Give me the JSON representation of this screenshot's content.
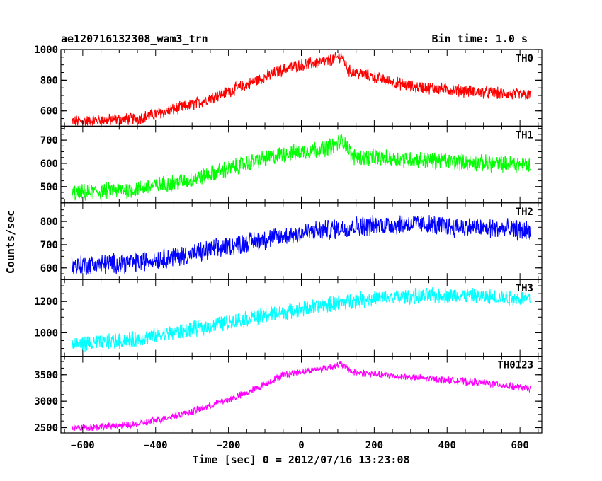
{
  "header": {
    "title": "ae120716132308_wam3_trn",
    "bin_time": "Bin time: 1.0 s"
  },
  "chart_data": {
    "type": "line",
    "xlabel": "Time [sec] 0 = 2012/07/16 13:23:08",
    "ylabel": "Counts/sec",
    "xlim": [
      -660,
      660
    ],
    "x_ticks": [
      -600,
      -400,
      -200,
      0,
      200,
      400,
      600
    ],
    "x_tick_labels": [
      "−600",
      "−400",
      "−200",
      "0",
      "200",
      "400",
      "600"
    ],
    "x_range_data": [
      -630,
      630
    ],
    "panels": [
      {
        "name": "TH0",
        "color": "#ff0000",
        "ylim": [
          500,
          1000
        ],
        "y_ticks": [
          600,
          800,
          1000
        ],
        "y_tick_labels": [
          "600",
          "800",
          "1000"
        ],
        "trend": [
          [
            -630,
            530
          ],
          [
            -450,
            550
          ],
          [
            -300,
            640
          ],
          [
            -150,
            770
          ],
          [
            -50,
            870
          ],
          [
            0,
            900
          ],
          [
            70,
            920
          ],
          [
            110,
            960
          ],
          [
            130,
            860
          ],
          [
            200,
            820
          ],
          [
            300,
            760
          ],
          [
            400,
            740
          ],
          [
            500,
            720
          ],
          [
            630,
            700
          ]
        ],
        "noise": 35
      },
      {
        "name": "TH1",
        "color": "#00ff00",
        "ylim": [
          430,
          760
        ],
        "y_ticks": [
          500,
          600,
          700
        ],
        "y_tick_labels": [
          "500",
          "600",
          "700"
        ],
        "trend": [
          [
            -630,
            470
          ],
          [
            -450,
            490
          ],
          [
            -300,
            530
          ],
          [
            -150,
            600
          ],
          [
            -50,
            640
          ],
          [
            0,
            650
          ],
          [
            80,
            670
          ],
          [
            115,
            700
          ],
          [
            140,
            630
          ],
          [
            250,
            620
          ],
          [
            400,
            610
          ],
          [
            500,
            600
          ],
          [
            630,
            595
          ]
        ],
        "noise": 32
      },
      {
        "name": "TH2",
        "color": "#0000ff",
        "ylim": [
          550,
          880
        ],
        "y_ticks": [
          600,
          700,
          800
        ],
        "y_tick_labels": [
          "600",
          "700",
          "800"
        ],
        "trend": [
          [
            -630,
            610
          ],
          [
            -450,
            625
          ],
          [
            -300,
            660
          ],
          [
            -150,
            710
          ],
          [
            0,
            750
          ],
          [
            150,
            780
          ],
          [
            300,
            790
          ],
          [
            450,
            775
          ],
          [
            630,
            760
          ]
        ],
        "noise": 38
      },
      {
        "name": "TH3",
        "color": "#00ffff",
        "ylim": [
          850,
          1340
        ],
        "y_ticks": [
          1000,
          1200
        ],
        "y_tick_labels": [
          "1000",
          "1200"
        ],
        "trend": [
          [
            -630,
            920
          ],
          [
            -450,
            960
          ],
          [
            -300,
            1020
          ],
          [
            -150,
            1090
          ],
          [
            0,
            1150
          ],
          [
            150,
            1210
          ],
          [
            300,
            1230
          ],
          [
            400,
            1240
          ],
          [
            500,
            1230
          ],
          [
            630,
            1220
          ]
        ],
        "noise": 45
      },
      {
        "name": "TH0123",
        "color": "#ff00ff",
        "ylim": [
          2400,
          3850
        ],
        "y_ticks": [
          2500,
          3000,
          3500
        ],
        "y_tick_labels": [
          "2500",
          "3000",
          "3500"
        ],
        "trend": [
          [
            -630,
            2490
          ],
          [
            -450,
            2560
          ],
          [
            -300,
            2800
          ],
          [
            -150,
            3150
          ],
          [
            -50,
            3500
          ],
          [
            0,
            3560
          ],
          [
            60,
            3620
          ],
          [
            110,
            3700
          ],
          [
            140,
            3550
          ],
          [
            250,
            3480
          ],
          [
            400,
            3400
          ],
          [
            500,
            3350
          ],
          [
            630,
            3230
          ]
        ],
        "noise": 60
      }
    ]
  }
}
